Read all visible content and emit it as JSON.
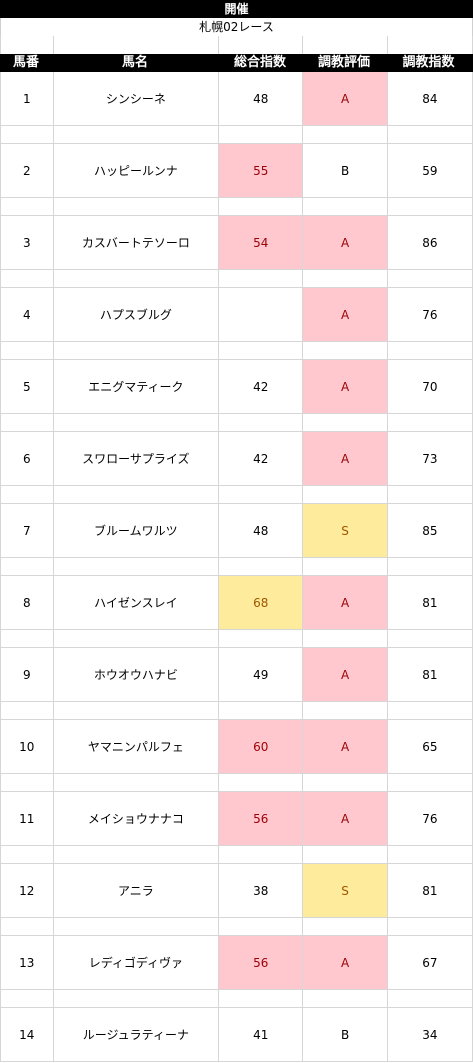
{
  "header": {
    "title": "開催",
    "race": "札幌02レース"
  },
  "columns": [
    "馬番",
    "馬名",
    "総合指数",
    "調教評価",
    "調教指数"
  ],
  "rows": [
    {
      "no": "1",
      "name": "シンシーネ",
      "sogo": "48",
      "hyoka": "A",
      "shisu": "84",
      "sogo_c": "",
      "hyoka_c": "pink"
    },
    {
      "no": "2",
      "name": "ハッピールンナ",
      "sogo": "55",
      "hyoka": "B",
      "shisu": "59",
      "sogo_c": "pink",
      "hyoka_c": ""
    },
    {
      "no": "3",
      "name": "カスバートテソーロ",
      "sogo": "54",
      "hyoka": "A",
      "shisu": "86",
      "sogo_c": "pink",
      "hyoka_c": "pink"
    },
    {
      "no": "4",
      "name": "ハプスブルグ",
      "sogo": "",
      "hyoka": "A",
      "shisu": "76",
      "sogo_c": "",
      "hyoka_c": "pink"
    },
    {
      "no": "5",
      "name": "エニグマティーク",
      "sogo": "42",
      "hyoka": "A",
      "shisu": "70",
      "sogo_c": "",
      "hyoka_c": "pink"
    },
    {
      "no": "6",
      "name": "スワローサプライズ",
      "sogo": "42",
      "hyoka": "A",
      "shisu": "73",
      "sogo_c": "",
      "hyoka_c": "pink"
    },
    {
      "no": "7",
      "name": "ブルームワルツ",
      "sogo": "48",
      "hyoka": "S",
      "shisu": "85",
      "sogo_c": "",
      "hyoka_c": "yellow"
    },
    {
      "no": "8",
      "name": "ハイゼンスレイ",
      "sogo": "68",
      "hyoka": "A",
      "shisu": "81",
      "sogo_c": "yellow",
      "hyoka_c": "pink"
    },
    {
      "no": "9",
      "name": "ホウオウハナビ",
      "sogo": "49",
      "hyoka": "A",
      "shisu": "81",
      "sogo_c": "",
      "hyoka_c": "pink"
    },
    {
      "no": "10",
      "name": "ヤマニンパルフェ",
      "sogo": "60",
      "hyoka": "A",
      "shisu": "65",
      "sogo_c": "pink",
      "hyoka_c": "pink"
    },
    {
      "no": "11",
      "name": "メイショウナナコ",
      "sogo": "56",
      "hyoka": "A",
      "shisu": "76",
      "sogo_c": "pink",
      "hyoka_c": "pink"
    },
    {
      "no": "12",
      "name": "アニラ",
      "sogo": "38",
      "hyoka": "S",
      "shisu": "81",
      "sogo_c": "",
      "hyoka_c": "yellow"
    },
    {
      "no": "13",
      "name": "レディゴディヴァ",
      "sogo": "56",
      "hyoka": "A",
      "shisu": "67",
      "sogo_c": "pink",
      "hyoka_c": "pink"
    },
    {
      "no": "14",
      "name": "ルージュラティーナ",
      "sogo": "41",
      "hyoka": "B",
      "shisu": "34",
      "sogo_c": "",
      "hyoka_c": ""
    }
  ],
  "colors": {
    "pink_fill": "#ffc7ce",
    "pink_text": "#9c0006",
    "yellow_fill": "#ffeb9c",
    "yellow_text": "#9c5700"
  }
}
